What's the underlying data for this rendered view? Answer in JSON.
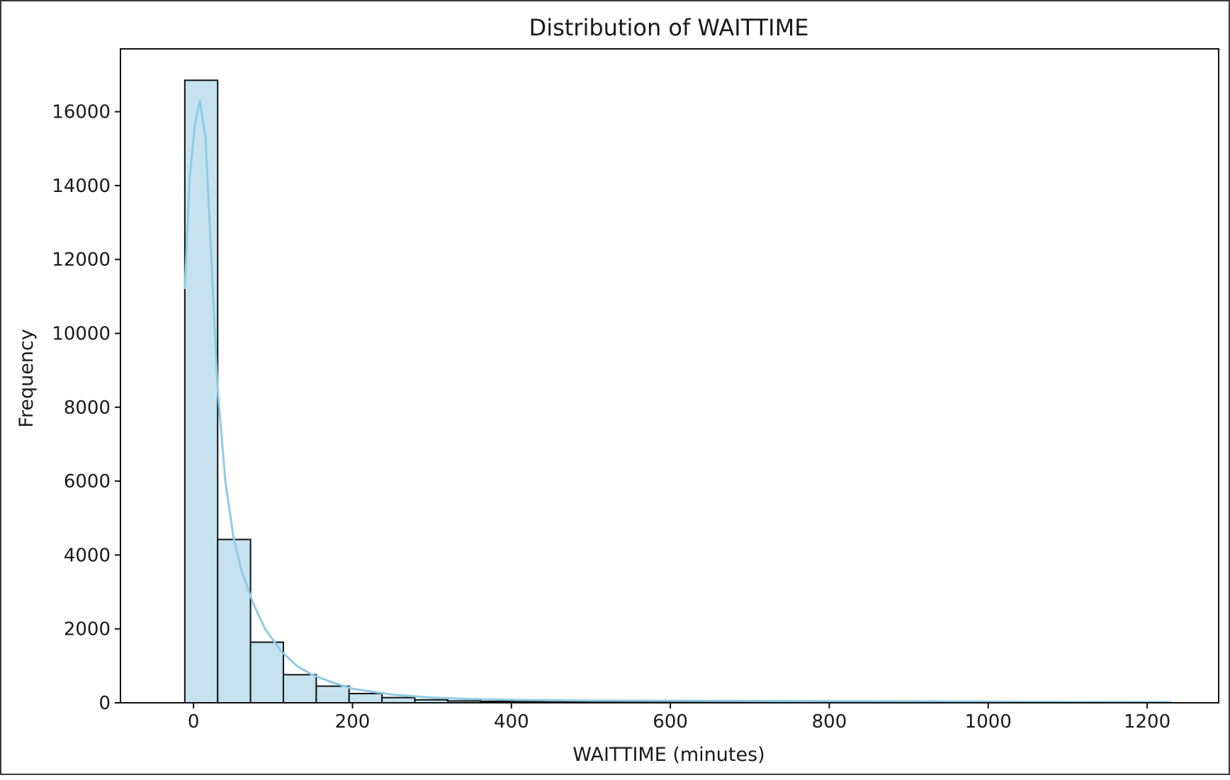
{
  "chart_data": {
    "type": "bar",
    "title": "Distribution of WAITTIME",
    "xlabel": "WAITTIME (minutes)",
    "ylabel": "Frequency",
    "xlim": [
      -92,
      1290
    ],
    "ylim": [
      0,
      17700
    ],
    "xticks": [
      0,
      200,
      400,
      600,
      800,
      1000,
      1200
    ],
    "yticks": [
      0,
      2000,
      4000,
      6000,
      8000,
      10000,
      12000,
      14000,
      16000
    ],
    "grid": false,
    "legend": "none",
    "bin_start": -11,
    "bin_width": 41.35,
    "series": [
      {
        "values": [
          16850,
          4420,
          1640,
          760,
          450,
          250,
          140,
          80,
          50,
          38,
          30,
          25,
          22,
          20,
          18,
          18,
          17,
          16,
          16,
          15,
          14,
          13,
          12,
          11,
          10,
          10,
          9,
          8,
          8,
          7
        ]
      }
    ],
    "kde": {
      "x": [
        -11,
        -5,
        2,
        8,
        15,
        22,
        30,
        40,
        50,
        60,
        75,
        90,
        110,
        130,
        150,
        175,
        200,
        250,
        300,
        350,
        400,
        500,
        600,
        700,
        800,
        900,
        1000,
        1100,
        1230
      ],
      "y": [
        11200,
        14200,
        15700,
        16300,
        15300,
        12200,
        8600,
        6000,
        4500,
        3600,
        2700,
        2000,
        1400,
        1000,
        750,
        550,
        380,
        220,
        140,
        100,
        80,
        60,
        55,
        50,
        45,
        40,
        30,
        25,
        20
      ]
    },
    "colors": {
      "bar_fill": "#c6e2ef",
      "bar_edge": "#111111",
      "kde_line": "#8ecae6",
      "axes": "#111111"
    }
  }
}
